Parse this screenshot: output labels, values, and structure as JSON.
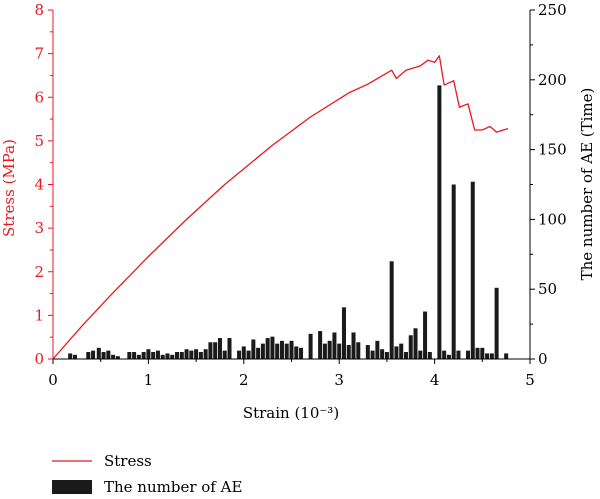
{
  "chart_data": {
    "type": "bar+line",
    "xlabel": "Strain (10⁻³)",
    "y_left_label": "Stress (MPa)",
    "y_right_label": "The number of AE (Time)",
    "xlim": [
      0,
      5
    ],
    "y_left_lim": [
      0,
      8
    ],
    "y_right_lim": [
      0,
      250
    ],
    "x_ticks": [
      "0",
      "1",
      "2",
      "3",
      "4",
      "5"
    ],
    "y_left_ticks": [
      "0",
      "1",
      "2",
      "3",
      "4",
      "5",
      "6",
      "7",
      "8"
    ],
    "y_right_ticks": [
      "0",
      "50",
      "100",
      "150",
      "200",
      "250"
    ],
    "grid": false,
    "legend_position": "bottom-left",
    "colors": {
      "stress": "#e8191f",
      "ae": "#1a1a1a",
      "axis": "#000000"
    },
    "series": [
      {
        "name": "Stress",
        "type": "line",
        "axis": "left",
        "x": [
          0.0,
          0.3,
          0.6,
          1.0,
          1.4,
          1.8,
          2.3,
          2.7,
          3.1,
          3.3,
          3.55,
          3.6,
          3.7,
          3.85,
          3.93,
          4.0,
          4.05,
          4.1,
          4.2,
          4.26,
          4.35,
          4.42,
          4.5,
          4.58,
          4.65,
          4.72,
          4.77
        ],
        "y": [
          0.0,
          0.75,
          1.45,
          2.35,
          3.2,
          4.0,
          4.9,
          5.55,
          6.1,
          6.3,
          6.62,
          6.43,
          6.62,
          6.72,
          6.85,
          6.8,
          6.95,
          6.28,
          6.38,
          5.77,
          5.85,
          5.25,
          5.25,
          5.33,
          5.2,
          5.25,
          5.28
        ]
      },
      {
        "name": "The number of AE",
        "type": "bar",
        "axis": "right",
        "x": [
          0.18,
          0.23,
          0.37,
          0.42,
          0.48,
          0.53,
          0.58,
          0.63,
          0.68,
          0.8,
          0.85,
          0.9,
          0.95,
          1.0,
          1.05,
          1.1,
          1.15,
          1.2,
          1.25,
          1.3,
          1.35,
          1.4,
          1.45,
          1.5,
          1.55,
          1.6,
          1.65,
          1.7,
          1.75,
          1.8,
          1.85,
          1.95,
          2.0,
          2.05,
          2.1,
          2.15,
          2.2,
          2.25,
          2.3,
          2.35,
          2.4,
          2.45,
          2.5,
          2.55,
          2.6,
          2.7,
          2.8,
          2.85,
          2.9,
          2.95,
          3.0,
          3.05,
          3.1,
          3.15,
          3.2,
          3.3,
          3.35,
          3.4,
          3.45,
          3.5,
          3.55,
          3.6,
          3.65,
          3.7,
          3.75,
          3.8,
          3.85,
          3.9,
          3.95,
          4.05,
          4.1,
          4.15,
          4.2,
          4.25,
          4.35,
          4.4,
          4.45,
          4.5,
          4.55,
          4.6,
          4.65,
          4.75
        ],
        "values": [
          4,
          3,
          5,
          6,
          8,
          5,
          6,
          3,
          2,
          5,
          5,
          3,
          5,
          7,
          5,
          6,
          3,
          4,
          3,
          5,
          5,
          7,
          6,
          7,
          5,
          7,
          12,
          12,
          15,
          6,
          15,
          6,
          9,
          6,
          14,
          8,
          11,
          15,
          16,
          11,
          13,
          11,
          13,
          9,
          8,
          18,
          20,
          11,
          13,
          19,
          11,
          37,
          10,
          19,
          12,
          10,
          6,
          13,
          7,
          5,
          70,
          9,
          11,
          5,
          17,
          22,
          6,
          34,
          5,
          196,
          6,
          3,
          125,
          6,
          6,
          127,
          8,
          8,
          4,
          4,
          51,
          4
        ]
      }
    ]
  }
}
